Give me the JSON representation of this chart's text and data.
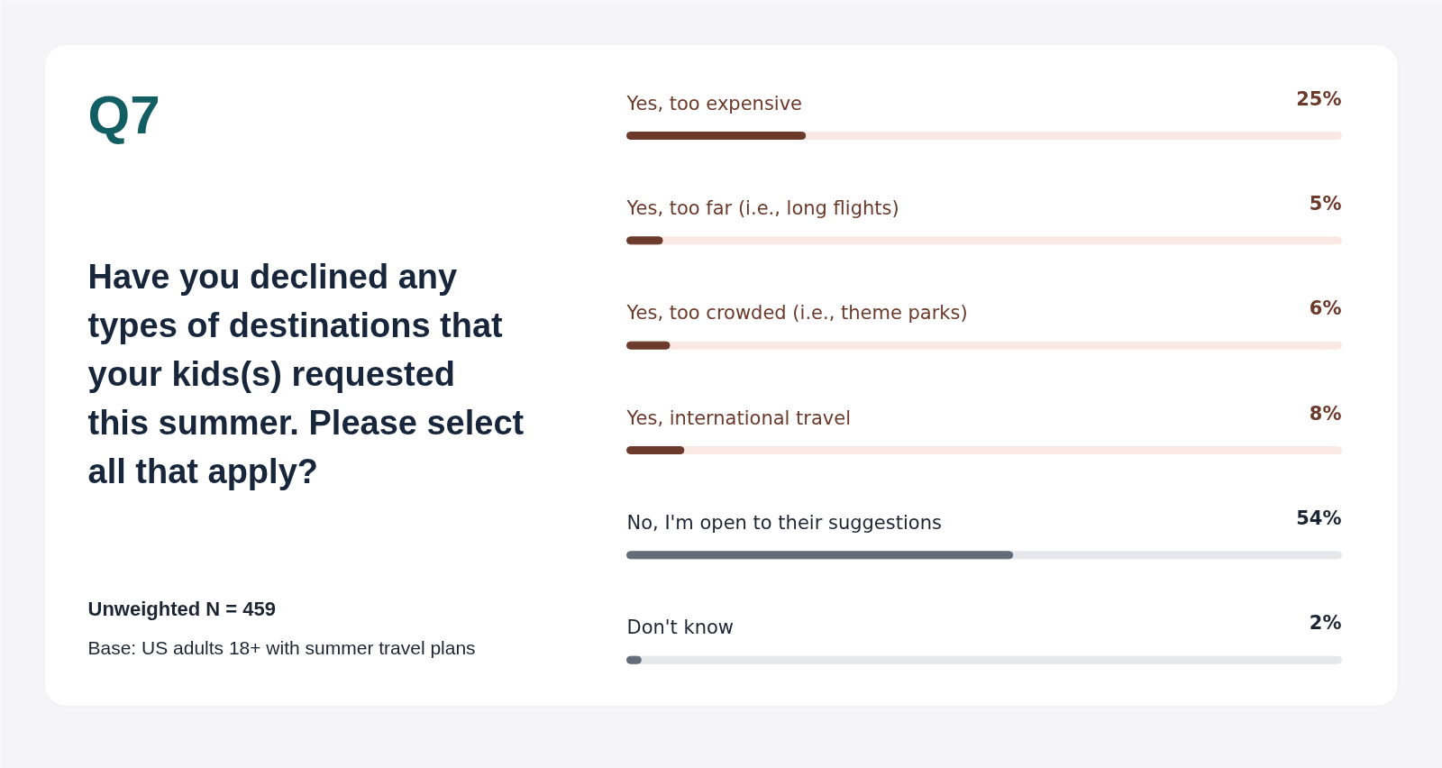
{
  "chart_data": {
    "type": "bar",
    "orientation": "horizontal",
    "title": "Q7",
    "subtitle": "Have you declined any types of destinations that your kids(s) requested this summer. Please select all that apply?",
    "categories": [
      "Yes, too expensive",
      "Yes, too far (i.e., long flights)",
      "Yes, too crowded (i.e., theme parks)",
      "Yes, international travel",
      "No, I'm open to their suggestions",
      "Don't know"
    ],
    "values": [
      25,
      5,
      6,
      8,
      54,
      2
    ],
    "value_labels": [
      "25%",
      "5%",
      "6%",
      "8%",
      "54%",
      "2%"
    ],
    "colors": [
      "#6b3a2a",
      "#6b3a2a",
      "#6b3a2a",
      "#6b3a2a",
      "#626d78",
      "#626d78"
    ],
    "xlim": [
      0,
      100
    ],
    "annotations": [
      "Unweighted N = 459",
      "Base: US adults 18+ with summer travel plans"
    ]
  }
}
